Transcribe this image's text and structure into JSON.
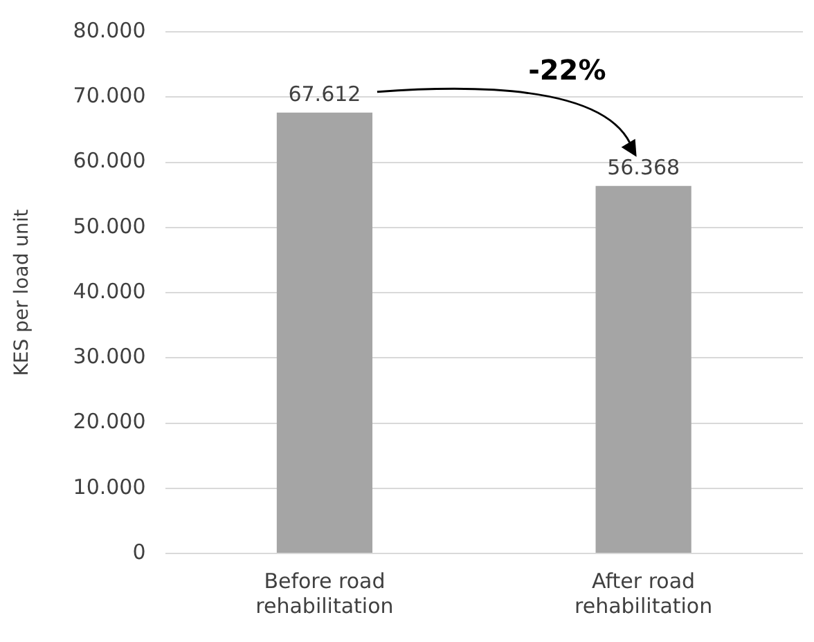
{
  "chart_data": {
    "type": "bar",
    "ylabel": "KES per load unit",
    "categories": [
      "Before road rehabilitation",
      "After road rehabilitation"
    ],
    "values": [
      67612,
      56368
    ],
    "color": "#a5a5a5",
    "value_labels": [
      "67.612",
      "56.368"
    ],
    "ylim": [
      0,
      80000
    ],
    "yticks": [
      {
        "value": 0,
        "label": "0"
      },
      {
        "value": 10000,
        "label": "10.000"
      },
      {
        "value": 20000,
        "label": "20.000"
      },
      {
        "value": 30000,
        "label": "30.000"
      },
      {
        "value": 40000,
        "label": "40.000"
      },
      {
        "value": 50000,
        "label": "50.000"
      },
      {
        "value": 60000,
        "label": "60.000"
      },
      {
        "value": 70000,
        "label": "70.000"
      },
      {
        "value": 80000,
        "label": "80.000"
      }
    ],
    "grid": "y",
    "legend": false,
    "annotations": [
      "-22%"
    ]
  }
}
